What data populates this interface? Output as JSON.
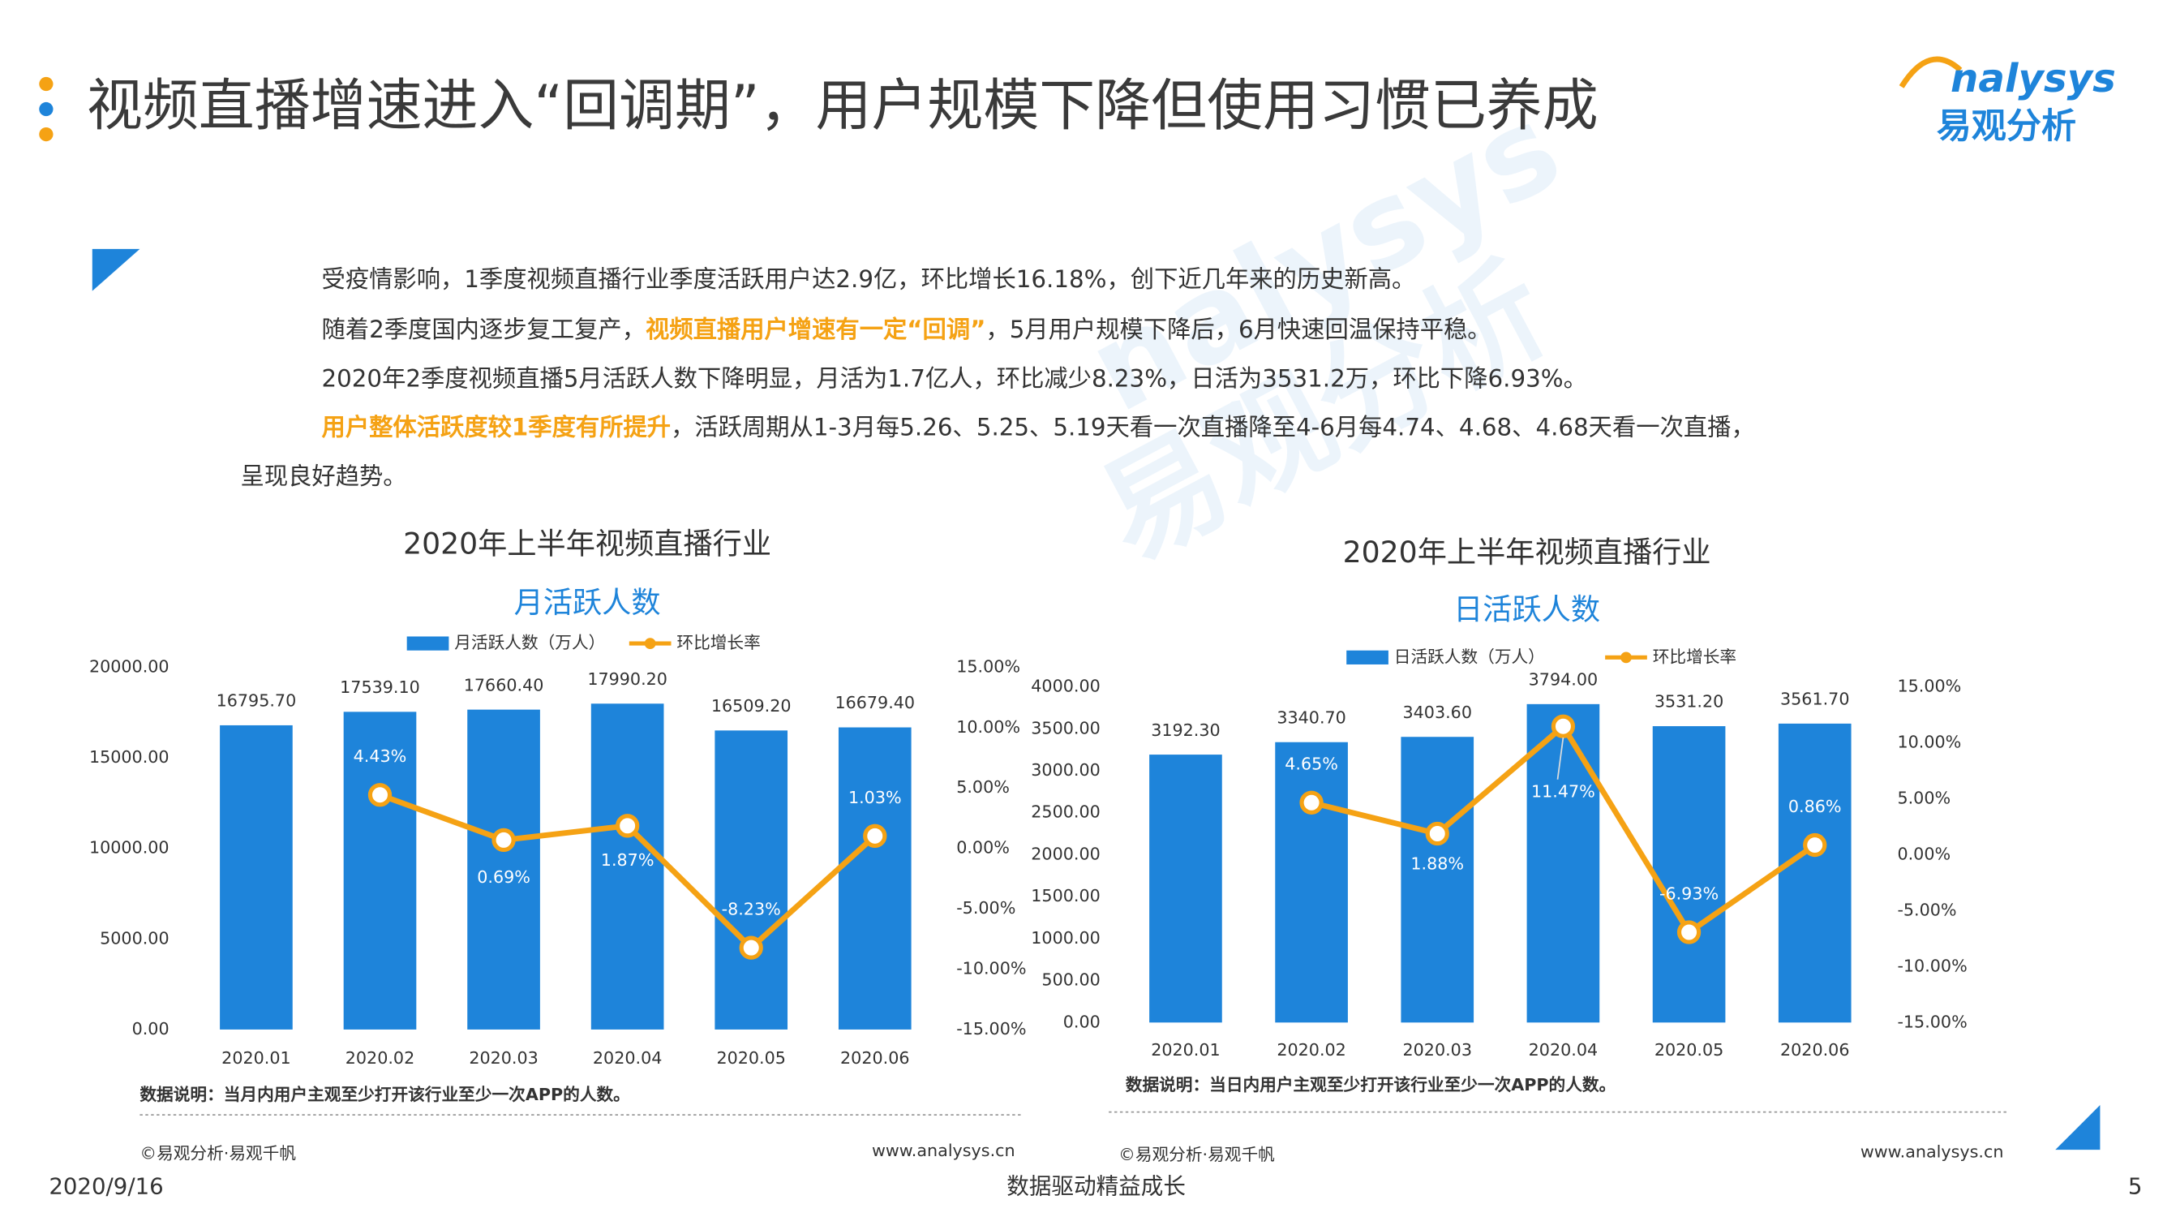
{
  "header": {
    "title": "视频直播增速进入“回调期”，用户规模下降但使用习惯已养成"
  },
  "logo": {
    "name": "nalysys",
    "cn": "易观分析"
  },
  "watermark": {
    "name": "nalysys",
    "cn": "易观分析"
  },
  "paragraphs": [
    [
      {
        "text": "受疫情影响，1季度视频直播行业季度活跃用户达2.9亿，环比增长16.18%，创下近几年来的历史新高。"
      }
    ],
    [
      {
        "text": "随着2季度国内逐步复工复产，"
      },
      {
        "text": "视频直播用户增速有一定“回调”",
        "color": "#f5a214"
      },
      {
        "text": "，5月用户规模下降后，6月快速回温保持平稳。"
      }
    ],
    [
      {
        "text": "2020年2季度视频直播5月活跃人数下降明显，月活为1.7亿人，环比减少8.23%，日活为3531.2万，环比下降6.93%。"
      }
    ],
    [
      {
        "text": "用户整体活跃度较1季度有所提升",
        "color": "#f5a214"
      },
      {
        "text": "，活跃周期从1-3月每5.26、5.25、5.19天看一次直播降至4-6月每4.74、4.68、4.68天看一次直播，"
      }
    ],
    [
      {
        "text": "呈现良好趋势。"
      }
    ]
  ],
  "chart_data": [
    {
      "type": "bar-line",
      "title": "2020年上半年视频直播行业",
      "subtitle": "月活跃人数",
      "categories": [
        "2020.01",
        "2020.02",
        "2020.03",
        "2020.04",
        "2020.05",
        "2020.06"
      ],
      "series": [
        {
          "name": "月活跃人数（万人）",
          "color": "#1e84da",
          "values": [
            16795.7,
            17539.1,
            17660.4,
            17990.2,
            16509.2,
            16679.4
          ],
          "value_labels": [
            "16795.70",
            "17539.10",
            "17660.40",
            "17990.20",
            "16509.20",
            "16679.40"
          ]
        },
        {
          "name": "环比增长率",
          "color": "#f5a214",
          "axis": "y2",
          "values": [
            null,
            4.43,
            0.69,
            1.87,
            -8.23,
            1.03
          ],
          "value_labels": [
            null,
            "4.43%",
            "0.69%",
            "1.87%",
            "-8.23%",
            "1.03%"
          ]
        }
      ],
      "ylim": [
        0,
        20000
      ],
      "yticks": [
        {
          "value": 0,
          "label": "0.00"
        },
        {
          "value": 5000,
          "label": "5000.00"
        },
        {
          "value": 10000,
          "label": "10000.00"
        },
        {
          "value": 15000,
          "label": "15000.00"
        },
        {
          "value": 20000,
          "label": "20000.00"
        }
      ],
      "y2lim": [
        -15,
        15
      ],
      "y2ticks": [
        {
          "value": -15,
          "label": "-15.00%"
        },
        {
          "value": -10,
          "label": "-10.00%"
        },
        {
          "value": -5,
          "label": "-5.00%"
        },
        {
          "value": 0,
          "label": "0.00%"
        },
        {
          "value": 5,
          "label": "5.00%"
        },
        {
          "value": 10,
          "label": "10.00%"
        },
        {
          "value": 15,
          "label": "15.00%"
        }
      ],
      "note": "数据说明：当月内用户主观至少打开该行业至少一次APP的人数。",
      "source": "©易观分析·易观千帆",
      "url": "www.analysys.cn"
    },
    {
      "type": "bar-line",
      "title": "2020年上半年视频直播行业",
      "subtitle": "日活跃人数",
      "categories": [
        "2020.01",
        "2020.02",
        "2020.03",
        "2020.04",
        "2020.05",
        "2020.06"
      ],
      "series": [
        {
          "name": "日活跃人数（万人）",
          "color": "#1e84da",
          "values": [
            3192.3,
            3340.7,
            3403.6,
            3794,
            3531.2,
            3561.7
          ],
          "value_labels": [
            "3192.30",
            "3340.70",
            "3403.60",
            "3794.00",
            "3531.20",
            "3561.70"
          ]
        },
        {
          "name": "环比增长率",
          "color": "#f5a214",
          "axis": "y2",
          "values": [
            null,
            4.65,
            1.88,
            11.47,
            -6.93,
            0.86
          ],
          "value_labels": [
            null,
            "4.65%",
            "1.88%",
            "11.47%",
            "-6.93%",
            "0.86%"
          ]
        }
      ],
      "ylim": [
        0,
        4000
      ],
      "yticks": [
        {
          "value": 0,
          "label": "0.00"
        },
        {
          "value": 500,
          "label": "500.00"
        },
        {
          "value": 1000,
          "label": "1000.00"
        },
        {
          "value": 1500,
          "label": "1500.00"
        },
        {
          "value": 2000,
          "label": "2000.00"
        },
        {
          "value": 2500,
          "label": "2500.00"
        },
        {
          "value": 3000,
          "label": "3000.00"
        },
        {
          "value": 3500,
          "label": "3500.00"
        },
        {
          "value": 4000,
          "label": "4000.00"
        }
      ],
      "y2lim": [
        -15,
        15
      ],
      "y2ticks": [
        {
          "value": -15,
          "label": "-15.00%"
        },
        {
          "value": -10,
          "label": "-10.00%"
        },
        {
          "value": -5,
          "label": "-5.00%"
        },
        {
          "value": 0,
          "label": "0.00%"
        },
        {
          "value": 5,
          "label": "5.00%"
        },
        {
          "value": 10,
          "label": "10.00%"
        },
        {
          "value": 15,
          "label": "15.00%"
        }
      ],
      "note": "数据说明：当日内用户主观至少打开该行业至少一次APP的人数。",
      "source": "©易观分析·易观千帆",
      "url": "www.analysys.cn"
    }
  ],
  "footer": {
    "date": "2020/9/16",
    "tagline": "数据驱动精益成长",
    "page": "5"
  }
}
